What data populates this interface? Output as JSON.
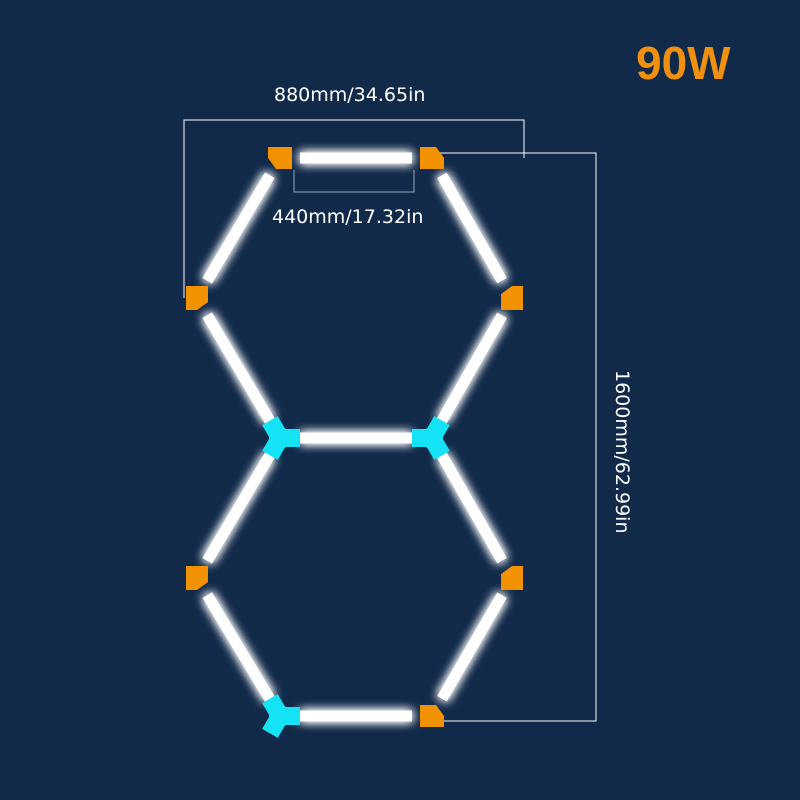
{
  "power": "90W",
  "dimensions": {
    "total_width": "880mm/34.65in",
    "tube_length": "440mm/17.32in",
    "total_height": "1600mm/62.99in"
  },
  "colors": {
    "background": "#122a4a",
    "tube": "#ffffff",
    "corner_connector": "#f39200",
    "y_connector": "#13e3f5",
    "power_text": "#f0900f"
  }
}
